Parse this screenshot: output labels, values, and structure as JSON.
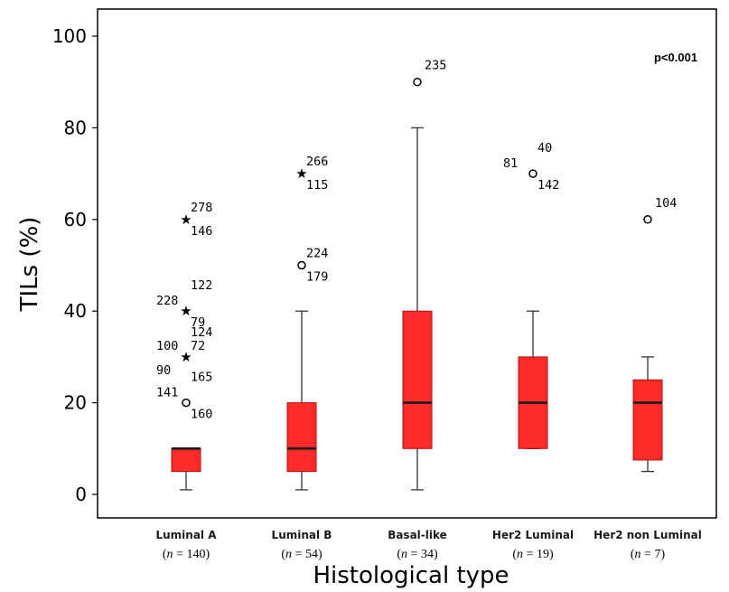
{
  "chart_data": {
    "type": "boxplot",
    "ylabel": "TILs (%)",
    "xlabel": "Histological type",
    "ylim": [
      0,
      100
    ],
    "yticks": [
      0,
      20,
      40,
      60,
      80,
      100
    ],
    "annotation": "p<0.001",
    "colors": {
      "box": "#ff2a2a",
      "median": "#1a1a1a",
      "whisker": "#333333",
      "frame": "#000000"
    },
    "categories": [
      {
        "name": "Luminal A",
        "n_label": "n",
        "n_value": "= 140",
        "min": 1,
        "q1": 5,
        "median": 10,
        "q3": 10,
        "max": 10,
        "outliers": [
          {
            "y": 60,
            "marker": "star",
            "labels": [
              "278",
              "146"
            ]
          },
          {
            "y": 40,
            "marker": "star",
            "labels": [
              "122",
              "228",
              "79"
            ]
          },
          {
            "y": 30,
            "marker": "star",
            "labels": [
              "124",
              "100",
              "72",
              "90"
            ]
          },
          {
            "y": 20,
            "marker": "circle",
            "labels": [
              "165",
              "141",
              "160"
            ]
          }
        ]
      },
      {
        "name": "Luminal B",
        "n_label": "n",
        "n_value": "= 54",
        "min": 1,
        "q1": 5,
        "median": 10,
        "q3": 20,
        "max": 40,
        "outliers": [
          {
            "y": 70,
            "marker": "star",
            "labels": [
              "266",
              "115"
            ]
          },
          {
            "y": 50,
            "marker": "circle",
            "labels": [
              "224",
              "179"
            ]
          }
        ]
      },
      {
        "name": "Basal-like",
        "n_label": "n",
        "n_value": "= 34",
        "min": 1,
        "q1": 10,
        "median": 20,
        "q3": 40,
        "max": 80,
        "outliers": [
          {
            "y": 90,
            "marker": "circle",
            "labels": [
              "235"
            ]
          }
        ]
      },
      {
        "name": "Her2 Luminal",
        "n_label": "n",
        "n_value": "= 19",
        "min": 10,
        "q1": 10,
        "median": 20,
        "q3": 30,
        "max": 40,
        "outliers": [
          {
            "y": 70,
            "marker": "circle",
            "labels": [
              "40",
              "81",
              "142"
            ]
          }
        ]
      },
      {
        "name": "Her2 non Luminal",
        "n_label": "n",
        "n_value": "= 7",
        "min": 5,
        "q1": 7.5,
        "median": 20,
        "q3": 25,
        "max": 30,
        "outliers": [
          {
            "y": 60,
            "marker": "circle",
            "labels": [
              "104"
            ]
          }
        ]
      }
    ]
  }
}
